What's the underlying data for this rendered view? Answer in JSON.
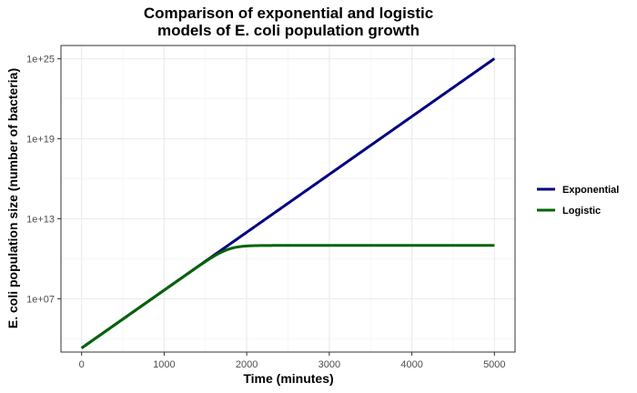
{
  "chart_data": {
    "type": "line",
    "title_lines": [
      "Comparison of exponential and logistic",
      "models of E. coli population growth"
    ],
    "xlabel": "Time (minutes)",
    "ylabel": "E. coli population size (number of bacteria)",
    "y_scale": "log10",
    "xlim": [
      -250,
      5250
    ],
    "ylim": [
      1000.0,
      1e+26
    ],
    "x_ticks": [
      0,
      1000,
      2000,
      3000,
      4000,
      5000
    ],
    "x_tick_labels": [
      "0",
      "1000",
      "2000",
      "3000",
      "4000",
      "5000"
    ],
    "y_ticks": [
      10000000.0,
      10000000000000.0,
      1e+19,
      1e+25
    ],
    "y_tick_labels": [
      "1e+07",
      "1e+13",
      "1e+19",
      "1e+25"
    ],
    "grid": true,
    "legend_position": "right",
    "series": [
      {
        "name": "Exponential",
        "color": "#000080",
        "model": "exponential",
        "N0": 2000,
        "r": 0.01,
        "x": [
          0,
          5000
        ],
        "y": [
          2000,
          1e+25
        ]
      },
      {
        "name": "Logistic",
        "color": "#006400",
        "model": "logistic",
        "N0": 2000,
        "r": 0.01,
        "K": 100000000000.0,
        "x": [
          0,
          5000
        ],
        "y": [
          2000,
          100000000000.0
        ]
      }
    ]
  }
}
